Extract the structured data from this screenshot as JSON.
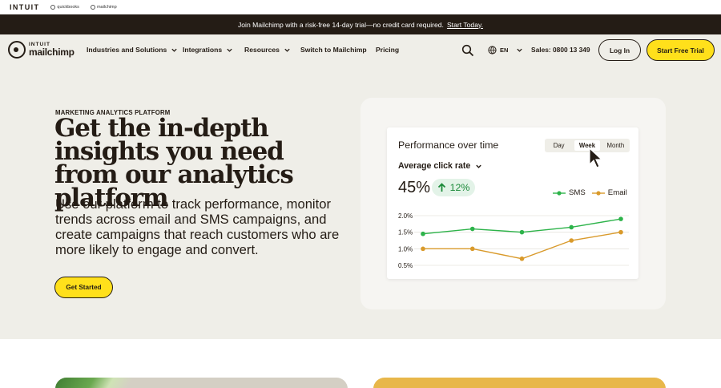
{
  "topbar": {
    "intuit": "INTUIT",
    "quickbooks": "quickbooks",
    "mailchimp": "mailchimp"
  },
  "promo": {
    "text": "Join Mailchimp with a risk-free 14-day trial—no credit card required.",
    "link": "Start Today."
  },
  "nav": {
    "brand_top": "INTUIT",
    "brand_bottom": "mailchimp",
    "items": [
      "Industries and Solutions",
      "Integrations",
      "Resources",
      "Switch to Mailchimp",
      "Pricing"
    ],
    "lang": "EN",
    "sales": "Sales: 0800 13 349",
    "login": "Log In",
    "trial": "Start Free Trial"
  },
  "hero": {
    "eyebrow": "MARKETING ANALYTICS PLATFORM",
    "headline": "Get the in-depth insights you need from our analytics platform",
    "subcopy": "Use our platform to track performance, monitor trends across email and SMS campaigns, and create campaigns that reach customers who are more likely to engage and convert.",
    "cta": "Get Started"
  },
  "widget": {
    "title": "Performance over time",
    "tabs": [
      "Day",
      "Week",
      "Month"
    ],
    "active_tab": "Week",
    "metric": "Average click rate",
    "value": "45%",
    "delta": "12%"
  },
  "chart_data": {
    "type": "line",
    "x": [
      1,
      2,
      3,
      4,
      5
    ],
    "yticks": [
      "2.0%",
      "1.5%",
      "1.0%",
      "0.5%"
    ],
    "ylim": [
      0.5,
      2.0
    ],
    "series": [
      {
        "name": "SMS",
        "color": "#2db34a",
        "values": [
          1.45,
          1.6,
          1.5,
          1.65,
          1.9
        ]
      },
      {
        "name": "Email",
        "color": "#d99a2b",
        "values": [
          1.0,
          1.0,
          0.7,
          1.25,
          1.5
        ]
      }
    ]
  },
  "colors": {
    "accent_yellow": "#ffe01b",
    "dark": "#241c15",
    "hero_bg": "#efeee8"
  }
}
